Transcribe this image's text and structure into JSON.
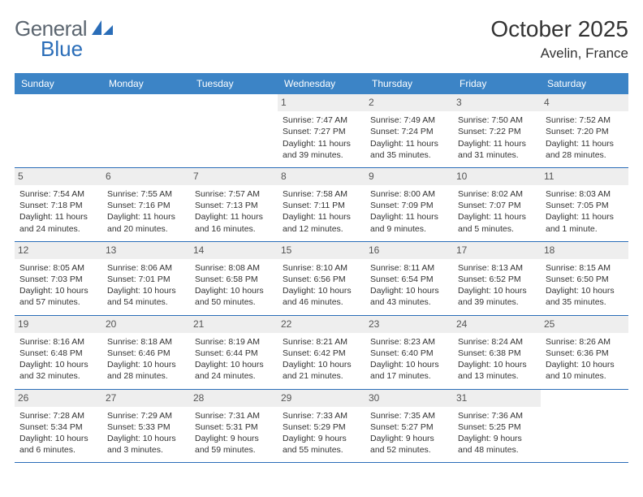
{
  "brand": {
    "word1": "General",
    "word2": "Blue"
  },
  "title": "October 2025",
  "location": "Avelin, France",
  "colors": {
    "header_bg": "#3c84c6",
    "border": "#2a6db8",
    "daynum_bg": "#eeeeee",
    "text": "#333333",
    "logo_gray": "#5c6670",
    "logo_blue": "#2a6db8"
  },
  "dayNames": [
    "Sunday",
    "Monday",
    "Tuesday",
    "Wednesday",
    "Thursday",
    "Friday",
    "Saturday"
  ],
  "weeks": [
    [
      {
        "n": "",
        "empty": true
      },
      {
        "n": "",
        "empty": true
      },
      {
        "n": "",
        "empty": true
      },
      {
        "n": "1",
        "sr": "7:47 AM",
        "ss": "7:27 PM",
        "dl": "11 hours and 39 minutes."
      },
      {
        "n": "2",
        "sr": "7:49 AM",
        "ss": "7:24 PM",
        "dl": "11 hours and 35 minutes."
      },
      {
        "n": "3",
        "sr": "7:50 AM",
        "ss": "7:22 PM",
        "dl": "11 hours and 31 minutes."
      },
      {
        "n": "4",
        "sr": "7:52 AM",
        "ss": "7:20 PM",
        "dl": "11 hours and 28 minutes."
      }
    ],
    [
      {
        "n": "5",
        "sr": "7:54 AM",
        "ss": "7:18 PM",
        "dl": "11 hours and 24 minutes."
      },
      {
        "n": "6",
        "sr": "7:55 AM",
        "ss": "7:16 PM",
        "dl": "11 hours and 20 minutes."
      },
      {
        "n": "7",
        "sr": "7:57 AM",
        "ss": "7:13 PM",
        "dl": "11 hours and 16 minutes."
      },
      {
        "n": "8",
        "sr": "7:58 AM",
        "ss": "7:11 PM",
        "dl": "11 hours and 12 minutes."
      },
      {
        "n": "9",
        "sr": "8:00 AM",
        "ss": "7:09 PM",
        "dl": "11 hours and 9 minutes."
      },
      {
        "n": "10",
        "sr": "8:02 AM",
        "ss": "7:07 PM",
        "dl": "11 hours and 5 minutes."
      },
      {
        "n": "11",
        "sr": "8:03 AM",
        "ss": "7:05 PM",
        "dl": "11 hours and 1 minute."
      }
    ],
    [
      {
        "n": "12",
        "sr": "8:05 AM",
        "ss": "7:03 PM",
        "dl": "10 hours and 57 minutes."
      },
      {
        "n": "13",
        "sr": "8:06 AM",
        "ss": "7:01 PM",
        "dl": "10 hours and 54 minutes."
      },
      {
        "n": "14",
        "sr": "8:08 AM",
        "ss": "6:58 PM",
        "dl": "10 hours and 50 minutes."
      },
      {
        "n": "15",
        "sr": "8:10 AM",
        "ss": "6:56 PM",
        "dl": "10 hours and 46 minutes."
      },
      {
        "n": "16",
        "sr": "8:11 AM",
        "ss": "6:54 PM",
        "dl": "10 hours and 43 minutes."
      },
      {
        "n": "17",
        "sr": "8:13 AM",
        "ss": "6:52 PM",
        "dl": "10 hours and 39 minutes."
      },
      {
        "n": "18",
        "sr": "8:15 AM",
        "ss": "6:50 PM",
        "dl": "10 hours and 35 minutes."
      }
    ],
    [
      {
        "n": "19",
        "sr": "8:16 AM",
        "ss": "6:48 PM",
        "dl": "10 hours and 32 minutes."
      },
      {
        "n": "20",
        "sr": "8:18 AM",
        "ss": "6:46 PM",
        "dl": "10 hours and 28 minutes."
      },
      {
        "n": "21",
        "sr": "8:19 AM",
        "ss": "6:44 PM",
        "dl": "10 hours and 24 minutes."
      },
      {
        "n": "22",
        "sr": "8:21 AM",
        "ss": "6:42 PM",
        "dl": "10 hours and 21 minutes."
      },
      {
        "n": "23",
        "sr": "8:23 AM",
        "ss": "6:40 PM",
        "dl": "10 hours and 17 minutes."
      },
      {
        "n": "24",
        "sr": "8:24 AM",
        "ss": "6:38 PM",
        "dl": "10 hours and 13 minutes."
      },
      {
        "n": "25",
        "sr": "8:26 AM",
        "ss": "6:36 PM",
        "dl": "10 hours and 10 minutes."
      }
    ],
    [
      {
        "n": "26",
        "sr": "7:28 AM",
        "ss": "5:34 PM",
        "dl": "10 hours and 6 minutes."
      },
      {
        "n": "27",
        "sr": "7:29 AM",
        "ss": "5:33 PM",
        "dl": "10 hours and 3 minutes."
      },
      {
        "n": "28",
        "sr": "7:31 AM",
        "ss": "5:31 PM",
        "dl": "9 hours and 59 minutes."
      },
      {
        "n": "29",
        "sr": "7:33 AM",
        "ss": "5:29 PM",
        "dl": "9 hours and 55 minutes."
      },
      {
        "n": "30",
        "sr": "7:35 AM",
        "ss": "5:27 PM",
        "dl": "9 hours and 52 minutes."
      },
      {
        "n": "31",
        "sr": "7:36 AM",
        "ss": "5:25 PM",
        "dl": "9 hours and 48 minutes."
      },
      {
        "n": "",
        "empty": true
      }
    ]
  ],
  "labels": {
    "sunrise": "Sunrise: ",
    "sunset": "Sunset: ",
    "daylight": "Daylight: "
  }
}
